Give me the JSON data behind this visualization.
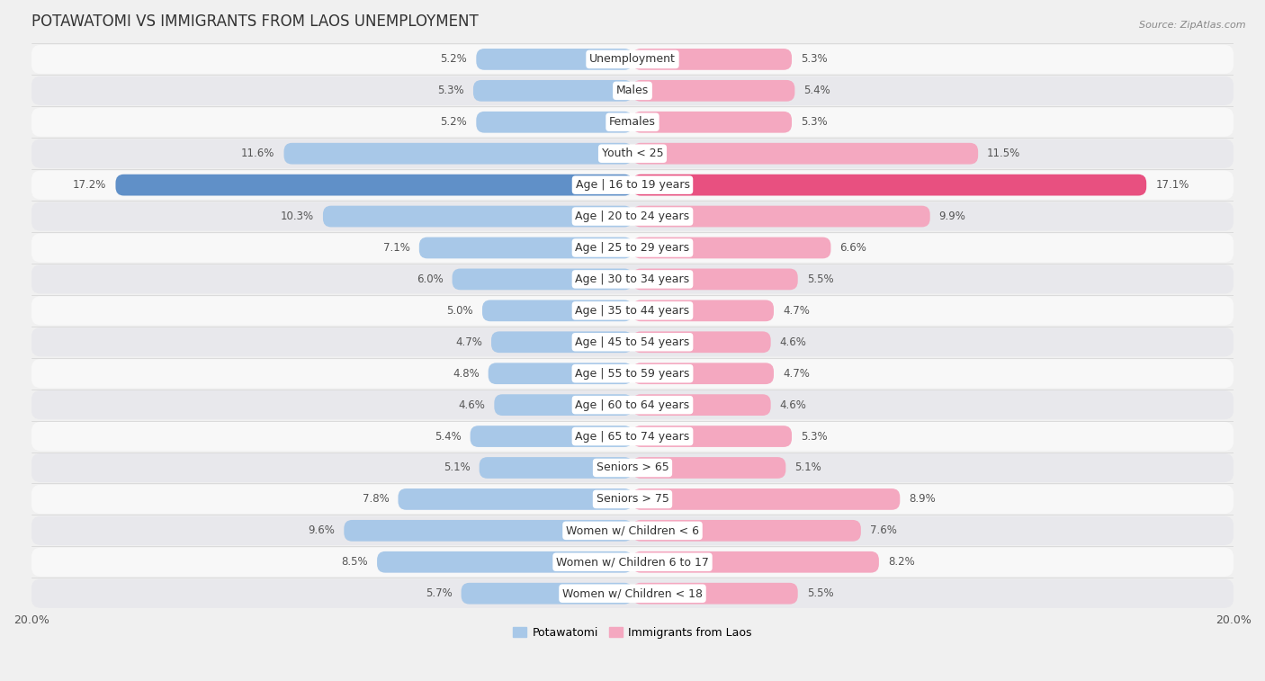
{
  "title": "POTAWATOMI VS IMMIGRANTS FROM LAOS UNEMPLOYMENT",
  "source": "Source: ZipAtlas.com",
  "categories": [
    "Unemployment",
    "Males",
    "Females",
    "Youth < 25",
    "Age | 16 to 19 years",
    "Age | 20 to 24 years",
    "Age | 25 to 29 years",
    "Age | 30 to 34 years",
    "Age | 35 to 44 years",
    "Age | 45 to 54 years",
    "Age | 55 to 59 years",
    "Age | 60 to 64 years",
    "Age | 65 to 74 years",
    "Seniors > 65",
    "Seniors > 75",
    "Women w/ Children < 6",
    "Women w/ Children 6 to 17",
    "Women w/ Children < 18"
  ],
  "potawatomi": [
    5.2,
    5.3,
    5.2,
    11.6,
    17.2,
    10.3,
    7.1,
    6.0,
    5.0,
    4.7,
    4.8,
    4.6,
    5.4,
    5.1,
    7.8,
    9.6,
    8.5,
    5.7
  ],
  "laos": [
    5.3,
    5.4,
    5.3,
    11.5,
    17.1,
    9.9,
    6.6,
    5.5,
    4.7,
    4.6,
    4.7,
    4.6,
    5.3,
    5.1,
    8.9,
    7.6,
    8.2,
    5.5
  ],
  "color_potawatomi": "#a8c8e8",
  "color_laos": "#f4a8c0",
  "color_potawatomi_max": "#6090c8",
  "color_laos_max": "#e85080",
  "axis_limit": 20.0,
  "bg_color": "#f0f0f0",
  "row_color_odd": "#f8f8f8",
  "row_color_even": "#e8e8ec",
  "title_fontsize": 12,
  "label_fontsize": 9,
  "value_fontsize": 8.5
}
